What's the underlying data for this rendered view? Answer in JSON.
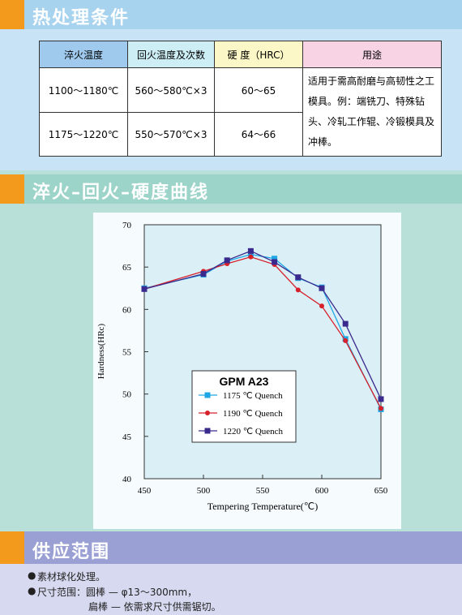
{
  "sections": [
    {
      "title": "热处理条件"
    },
    {
      "title": "淬火–回火–硬度曲线"
    },
    {
      "title": "供应范围"
    }
  ],
  "table": {
    "header": [
      "淬火温度",
      "回火温度及次数",
      "硬 度（HRC）",
      "用途"
    ],
    "rows": [
      [
        "1100～1180℃",
        "560～580℃×3",
        "60～65",
        "适用于需高耐磨与高韧性之工模具。例：端铣刀、特殊钻头、冷轧工作辊、冷锻模具及冲棒。"
      ],
      [
        "1175～1220℃",
        "550～570℃×3",
        "64～66"
      ]
    ]
  },
  "chart_data": {
    "type": "line",
    "x_label": "Tempering Temperature(℃)",
    "y_label": "Hardness(HRc)",
    "legend_title": "GPM A23",
    "x": [
      450,
      500,
      520,
      540,
      560,
      580,
      600,
      620,
      650
    ],
    "series": [
      {
        "name": "1175 ℃ Quench",
        "color": "#1ea7e4",
        "marker": "square",
        "values": [
          62.5,
          64.1,
          65.7,
          66.5,
          66.0,
          63.7,
          62.6,
          56.5,
          48.2
        ]
      },
      {
        "name": "1190 ℃ Quench",
        "color": "#d7202a",
        "marker": "circle",
        "values": [
          62.4,
          64.5,
          65.4,
          66.2,
          65.3,
          62.3,
          60.4,
          56.3,
          48.3
        ]
      },
      {
        "name": "1220 ℃ Quench",
        "color": "#3b2a8e",
        "marker": "square",
        "values": [
          62.4,
          64.2,
          65.8,
          66.9,
          65.6,
          63.8,
          62.5,
          58.3,
          49.4
        ]
      }
    ],
    "xlim": [
      450,
      650
    ],
    "xticks": [
      450,
      500,
      550,
      600,
      650
    ],
    "ylim": [
      40,
      70
    ],
    "yticks": [
      40,
      45,
      50,
      55,
      60,
      65,
      70
    ]
  },
  "supply": {
    "items": [
      "素材球化处理。",
      "尺寸范围：圆棒 — φ13～300mm，",
      "扁棒 — 依需求尺寸供需锯切。"
    ]
  }
}
